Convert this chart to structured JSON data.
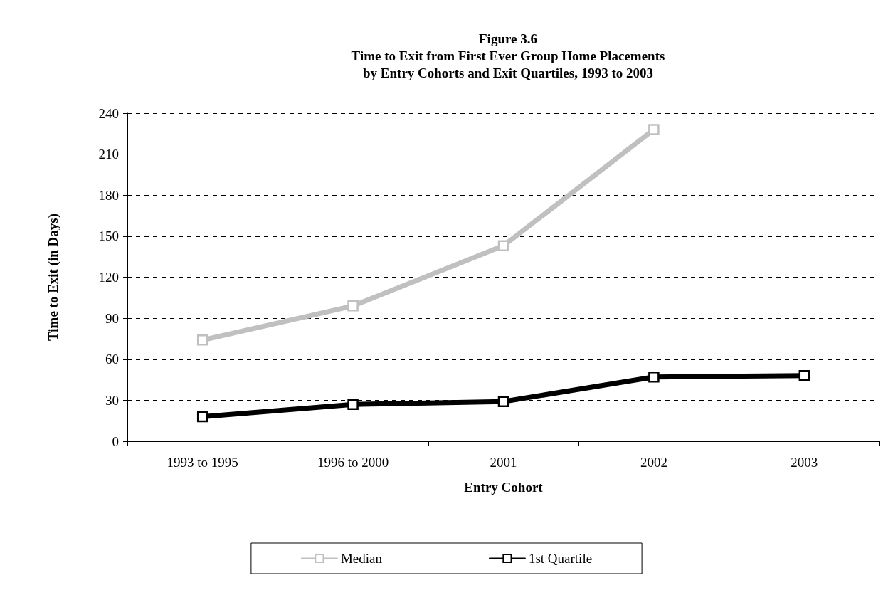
{
  "chart_data": {
    "type": "line",
    "title": "Figure 3.6\nTime to Exit from First Ever Group Home Placements\nby Entry Cohorts and Exit Quartiles, 1993 to 2003",
    "xlabel": "Entry Cohort",
    "ylabel": "Time to Exit (in Days)",
    "categories": [
      "1993 to 1995",
      "1996 to 2000",
      "2001",
      "2002",
      "2003"
    ],
    "series": [
      {
        "name": "Median",
        "color": "#c0c0c0",
        "values": [
          74,
          99,
          143,
          228,
          null
        ]
      },
      {
        "name": "1st Quartile",
        "color": "#000000",
        "values": [
          18,
          27,
          29,
          47,
          48
        ]
      }
    ],
    "ylim": [
      0,
      240
    ],
    "yticks": [
      0,
      30,
      60,
      90,
      120,
      150,
      180,
      210,
      240
    ],
    "grid": "y",
    "legend": "bottom",
    "marker": "square",
    "line_style": "solid"
  }
}
